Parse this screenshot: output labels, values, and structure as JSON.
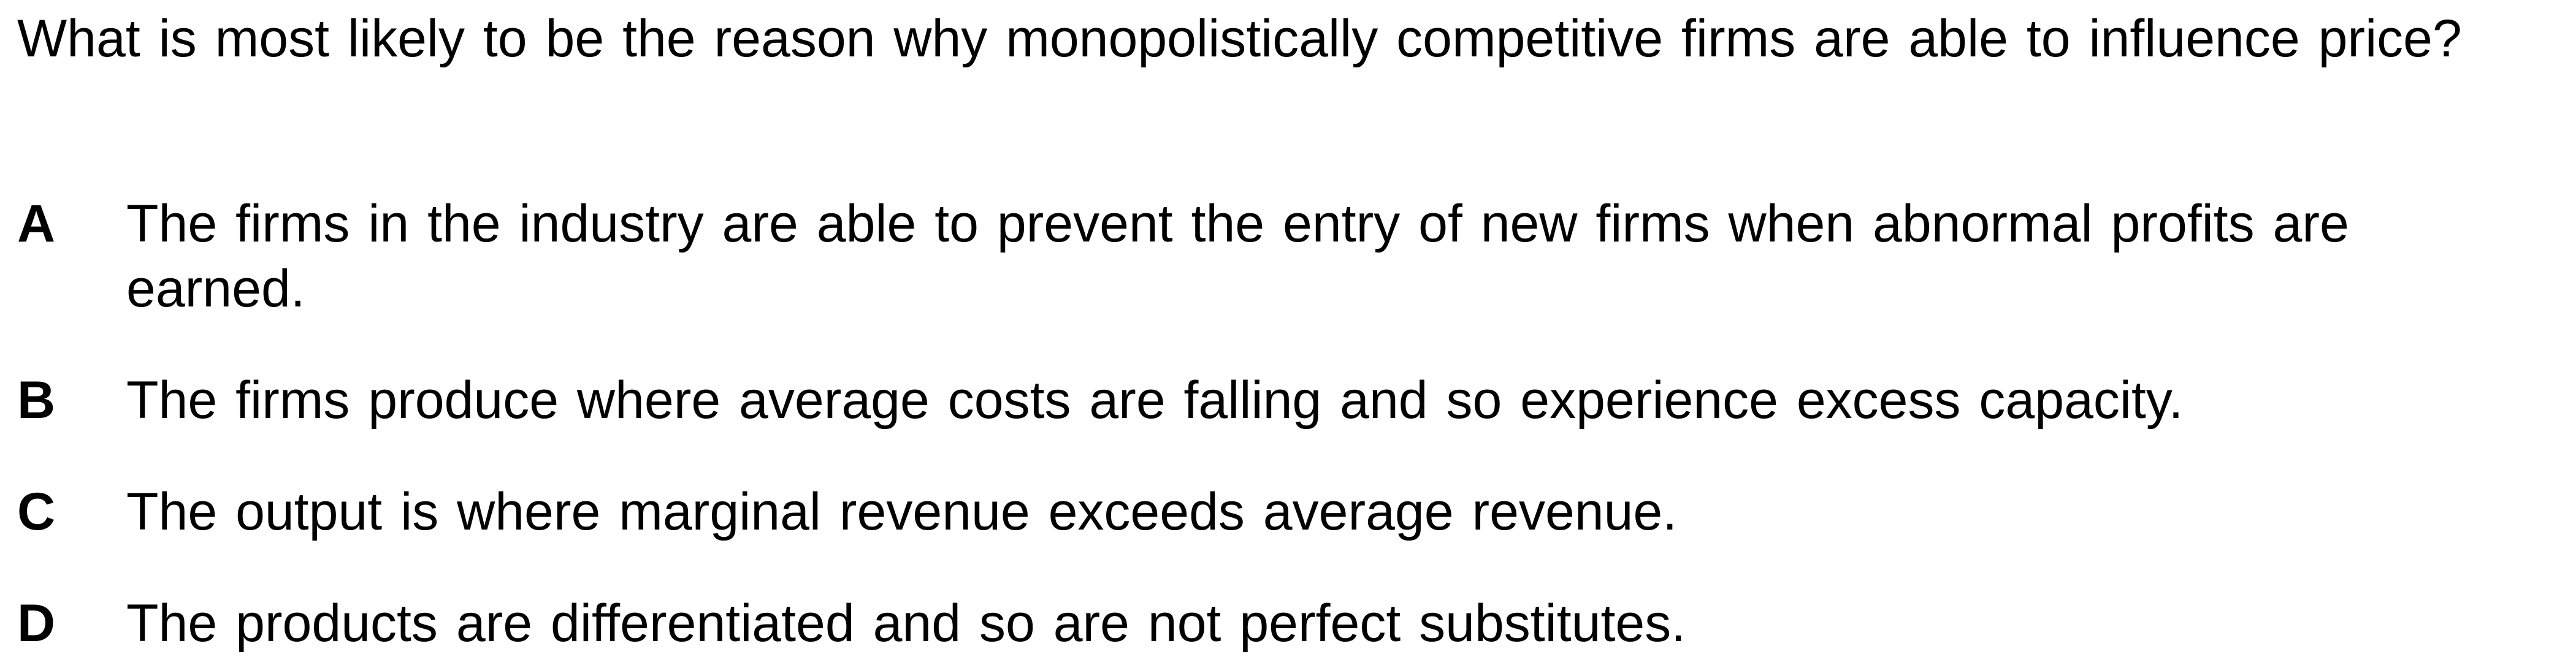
{
  "question": {
    "text": "What is most likely to be the reason why monopolistically competitive firms are able to influence price?"
  },
  "options": [
    {
      "letter": "A",
      "text": "The firms in the industry are able to prevent the entry of new firms when abnormal profits are earned."
    },
    {
      "letter": "B",
      "text": "The firms produce where average costs are falling and so experience excess capacity."
    },
    {
      "letter": "C",
      "text": "The output is where marginal revenue exceeds average revenue."
    },
    {
      "letter": "D",
      "text": "The products are differentiated and so are not perfect substitutes."
    }
  ]
}
